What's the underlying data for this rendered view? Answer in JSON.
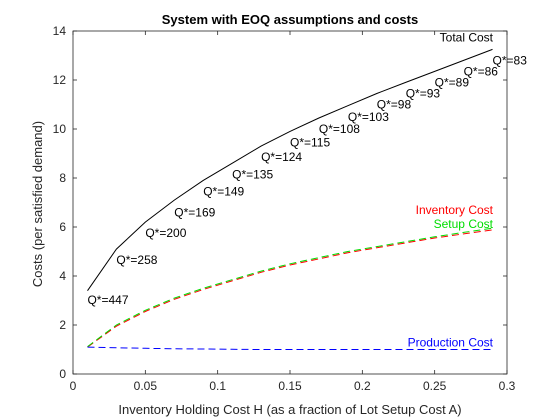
{
  "chart_data": {
    "type": "line",
    "title": "System with EOQ assumptions and costs",
    "xlabel": "Inventory Holding Cost H (as a fraction of Lot Setup Cost A)",
    "ylabel": "Costs (per satisfied demand)",
    "xlim": [
      0,
      0.3
    ],
    "ylim": [
      0,
      14
    ],
    "xticks": [
      0,
      0.05,
      0.1,
      0.15,
      0.2,
      0.25,
      0.3
    ],
    "xtick_labels": [
      "0",
      "0.05",
      "0.1",
      "0.15",
      "0.2",
      "0.25",
      "0.3"
    ],
    "yticks": [
      0,
      2,
      4,
      6,
      8,
      10,
      12,
      14
    ],
    "ytick_labels": [
      "0",
      "2",
      "4",
      "6",
      "8",
      "10",
      "12",
      "14"
    ],
    "grid": false,
    "x": [
      0.01,
      0.03,
      0.05,
      0.07,
      0.09,
      0.11,
      0.13,
      0.15,
      0.17,
      0.19,
      0.21,
      0.23,
      0.25,
      0.27,
      0.29
    ],
    "series": [
      {
        "name": "Total Cost",
        "color": "#000000",
        "style": "solid",
        "values": [
          3.4,
          5.1,
          6.2,
          7.1,
          7.9,
          8.6,
          9.3,
          9.9,
          10.45,
          10.95,
          11.45,
          11.9,
          12.35,
          12.8,
          13.25
        ]
      },
      {
        "name": "Inventory Cost",
        "color": "#ff0000",
        "style": "dashed",
        "values": [
          1.1,
          1.95,
          2.55,
          3.05,
          3.45,
          3.8,
          4.15,
          4.45,
          4.7,
          4.95,
          5.15,
          5.35,
          5.55,
          5.72,
          5.88
        ]
      },
      {
        "name": "Setup Cost",
        "color": "#00dd00",
        "style": "dashed",
        "values": [
          1.12,
          2.0,
          2.6,
          3.1,
          3.5,
          3.85,
          4.2,
          4.5,
          4.75,
          5.0,
          5.2,
          5.4,
          5.6,
          5.78,
          5.95
        ]
      },
      {
        "name": "Production Cost",
        "color": "#0000ff",
        "style": "dashed",
        "values": [
          1.1,
          1.07,
          1.05,
          1.03,
          1.02,
          1.01,
          1.0,
          1.0,
          1.0,
          1.0,
          1.0,
          1.0,
          1.0,
          1.0,
          1.0
        ]
      }
    ],
    "annotations": [
      {
        "text": "Q*=447",
        "x": 0.01,
        "y": 3.02
      },
      {
        "text": "Q*=258",
        "x": 0.03,
        "y": 4.65
      },
      {
        "text": "Q*=200",
        "x": 0.05,
        "y": 5.75
      },
      {
        "text": "Q*=169",
        "x": 0.07,
        "y": 6.6
      },
      {
        "text": "Q*=149",
        "x": 0.09,
        "y": 7.45
      },
      {
        "text": "Q*=135",
        "x": 0.11,
        "y": 8.15
      },
      {
        "text": "Q*=124",
        "x": 0.13,
        "y": 8.85
      },
      {
        "text": "Q*=115",
        "x": 0.15,
        "y": 9.45
      },
      {
        "text": "Q*=108",
        "x": 0.17,
        "y": 10.0
      },
      {
        "text": "Q*=103",
        "x": 0.19,
        "y": 10.5
      },
      {
        "text": "Q*=98",
        "x": 0.21,
        "y": 11.0
      },
      {
        "text": "Q*=93",
        "x": 0.23,
        "y": 11.45
      },
      {
        "text": "Q*=89",
        "x": 0.25,
        "y": 11.9
      },
      {
        "text": "Q*=86",
        "x": 0.27,
        "y": 12.35
      },
      {
        "text": "Q*=83",
        "x": 0.29,
        "y": 12.8
      }
    ]
  }
}
